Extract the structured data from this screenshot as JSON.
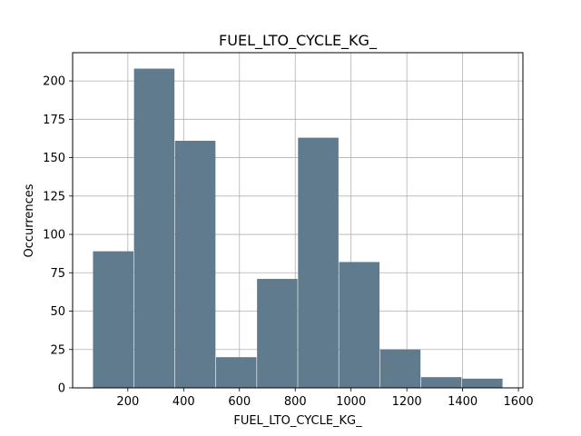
{
  "chart_data": {
    "type": "bar",
    "title": "FUEL_LTO_CYCLE_KG_",
    "xlabel": "FUEL_LTO_CYCLE_KG_",
    "ylabel": "Occurrences",
    "bins": [
      {
        "x0": 75,
        "x1": 220,
        "count": 89
      },
      {
        "x0": 222,
        "x1": 367,
        "count": 208
      },
      {
        "x0": 369,
        "x1": 514,
        "count": 161
      },
      {
        "x0": 516,
        "x1": 661,
        "count": 20
      },
      {
        "x0": 663,
        "x1": 808,
        "count": 71
      },
      {
        "x0": 810,
        "x1": 955,
        "count": 163
      },
      {
        "x0": 957,
        "x1": 1102,
        "count": 82
      },
      {
        "x0": 1104,
        "x1": 1249,
        "count": 25
      },
      {
        "x0": 1251,
        "x1": 1396,
        "count": 7
      },
      {
        "x0": 1398,
        "x1": 1543,
        "count": 6
      }
    ],
    "xlim": [
      2,
      1616
    ],
    "ylim": [
      0,
      218.4
    ],
    "xticks": [
      200,
      400,
      600,
      800,
      1000,
      1200,
      1400,
      1600
    ],
    "xtick_labels": [
      "200",
      "400",
      "600",
      "800",
      "1000",
      "1200",
      "1400",
      "1600"
    ],
    "yticks": [
      0,
      25,
      50,
      75,
      100,
      125,
      150,
      175,
      200
    ],
    "ytick_labels": [
      "0",
      "25",
      "50",
      "75",
      "100",
      "125",
      "150",
      "175",
      "200"
    ],
    "grid": true,
    "bar_color": "#607b8e",
    "grid_color": "#b0b0b0"
  }
}
